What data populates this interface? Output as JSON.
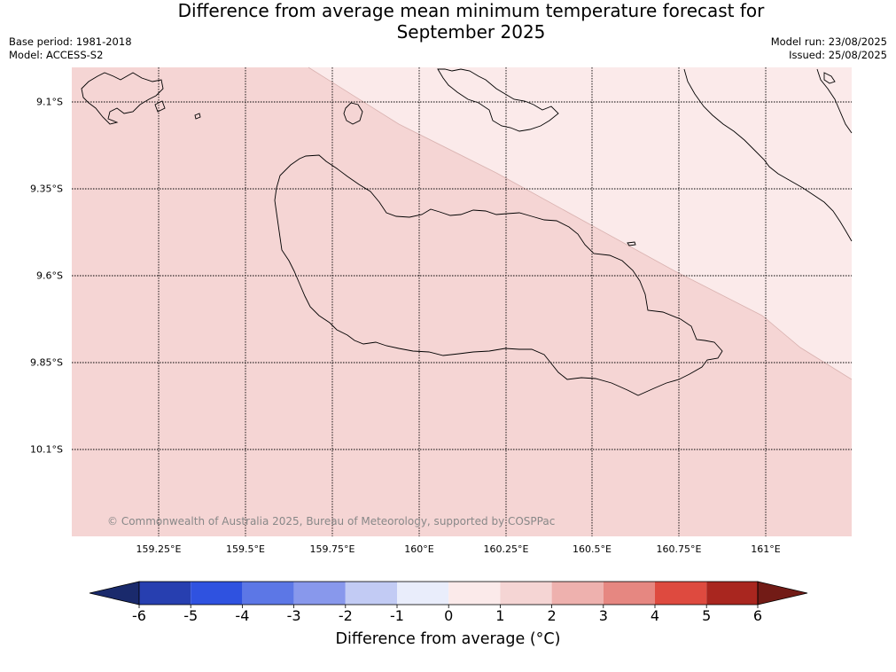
{
  "title_line1": "Difference from average mean minimum temperature forecast for",
  "title_line2": "September 2025",
  "base_period": "Base period: 1981-2018",
  "model": "Model: ACCESS-S2",
  "model_run": "Model run: 23/08/2025",
  "issued": "Issued: 25/08/2025",
  "copyright": "© Commonwealth of Australia 2025, Bureau of Meteorology, supported by COSPPac",
  "lat_labels": [
    "9.1°S",
    "9.35°S",
    "9.6°S",
    "9.85°S",
    "10.1°S"
  ],
  "lon_labels": [
    "159.25°E",
    "159.5°E",
    "159.75°E",
    "160°E",
    "160.25°E",
    "160.5°E",
    "160.75°E",
    "161°E"
  ],
  "colorbar": {
    "title": "Difference from average (°C)",
    "ticks": [
      "-6",
      "-5",
      "-4",
      "-3",
      "-2",
      "-1",
      "0",
      "1",
      "2",
      "3",
      "4",
      "5",
      "6"
    ],
    "colors": [
      "#1a2a6c",
      "#273fb0",
      "#2f52e0",
      "#5c77e6",
      "#8898ec",
      "#c2cbf4",
      "#e9edfb",
      "#fbeaea",
      "#f5d5d4",
      "#eeb1ae",
      "#e68781",
      "#de4a3f",
      "#a9261f",
      "#721b16"
    ]
  },
  "map": {
    "zone_1_2_color": "#f5d5d4",
    "zone_0_1_color": "#fbeaea"
  }
}
